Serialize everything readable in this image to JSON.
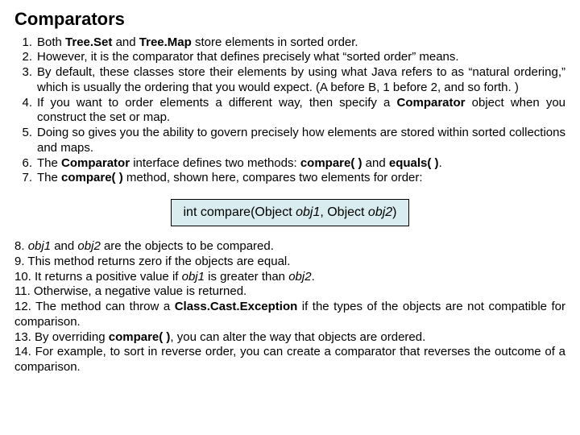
{
  "title": "Comparators",
  "top": {
    "i1": "Both <b>Tree.Set</b> and <b>Tree.Map</b> store elements in sorted order.",
    "i2": "However, it is the comparator that defines precisely what “sorted order” means.",
    "i3": "By default, these classes store their elements by using what Java refers to as “natural ordering,” which is usually the ordering that you would expect. (A before B, 1 before 2, and so forth. )",
    "i4": "If you want to order elements a different way, then specify a <b>Comparator</b> object when you construct the set or map.",
    "i5": "Doing so gives you the ability to govern precisely how elements are stored within sorted collections and maps.",
    "i6": "The <b>Comparator</b> interface defines two methods: <b>compare( )</b> and <b>equals( )</b>.",
    "i7": "The <b>compare( )</b> method, shown here, compares two elements for order:"
  },
  "signature": "int compare(Object <i>obj1</i>, Object <i>obj2</i>)",
  "bottom": {
    "i8": "8. <i>obj1</i> and <i>obj2</i> are the objects to be compared.",
    "i9": "9. This method returns zero if the objects are equal.",
    "i10": "10. It returns a positive value if <i>obj1</i> is greater than <i>obj2</i>.",
    "i11": "11. Otherwise, a negative value is returned.",
    "i12": "12. The method can throw a <b>Class.Cast.Exception</b> if the types of the objects are not compatible for comparison.",
    "i13": "13. By overriding <b>compare( )</b>, you can alter the way that objects are ordered.",
    "i14": "14. For example, to sort in reverse order, you can create a comparator that reverses the outcome of a comparison."
  }
}
